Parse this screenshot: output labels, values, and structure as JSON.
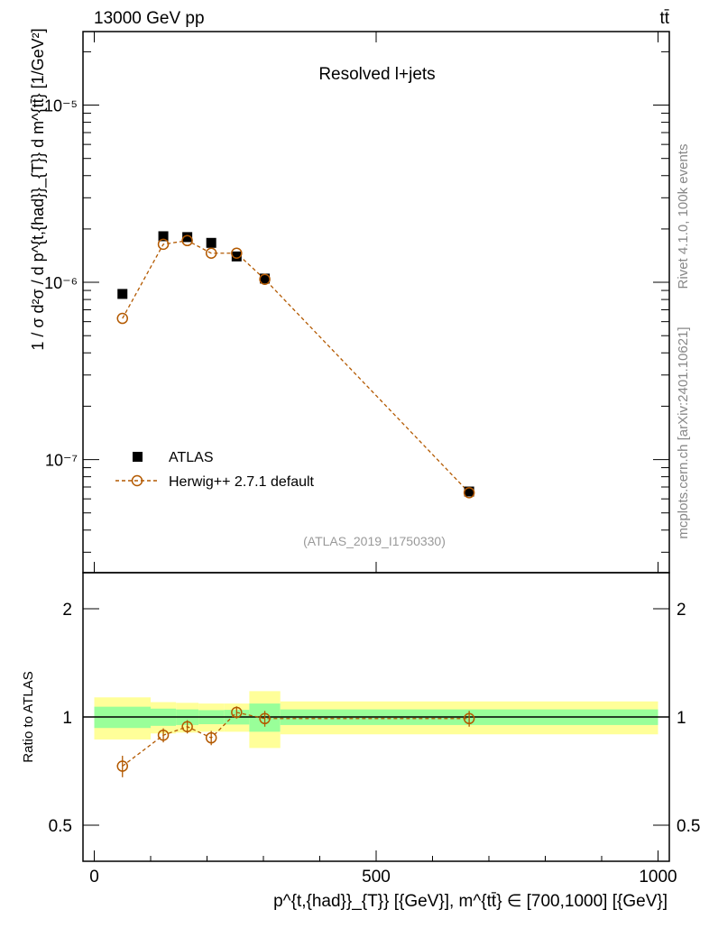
{
  "header": {
    "left": "13000 GeV pp",
    "right": "tt̄"
  },
  "side_labels": {
    "top": "Rivet 4.1.0,  100k events",
    "bottom": "mcplots.cern.ch [arXiv:2401.10621]"
  },
  "colors": {
    "data": "#000000",
    "mc": "#b35900",
    "band_inner": "#99ff99",
    "band_outer": "#ffff99"
  },
  "chart_data": {
    "type": "scatter",
    "title": "Resolved l+jets",
    "watermark": "(ATLAS_2019_I1750330)",
    "xlabel": "p^{t,{had}}_{T}} [{GeV}], m^{tt̄} ∈ [700,1000] [{GeV}]",
    "ylabel": "1 / σ d²σ / d p^{t,{had}}_{T}} d m^{tt̄} [1/GeV²]",
    "ratio_ylabel": "Ratio to ATLAS",
    "xlim": [
      -20,
      1020
    ],
    "ylim": [
      2.3e-08,
      2.6e-05
    ],
    "ratio_ylim": [
      0.397,
      2.52
    ],
    "x_ticks": [
      0,
      500,
      1000
    ],
    "y_ticks": [
      {
        "v": 1e-05,
        "label": "10⁻⁵"
      },
      {
        "v": 1e-06,
        "label": "10⁻⁶"
      },
      {
        "v": 1e-07,
        "label": "10⁻⁷"
      }
    ],
    "ratio_ticks": [
      0.5,
      1,
      2
    ],
    "legend": {
      "position": "bottom-left",
      "entries": [
        "ATLAS",
        "Herwig++ 2.7.1 default"
      ]
    },
    "bin_edges": [
      0,
      100,
      145,
      185,
      230,
      275,
      330,
      1000
    ],
    "x": [
      50,
      122.5,
      165,
      207.5,
      252.5,
      302.5,
      665
    ],
    "series": [
      {
        "name": "ATLAS",
        "values": [
          8.6e-07,
          1.82e-06,
          1.8e-06,
          1.67e-06,
          1.4e-06,
          1.05e-06,
          6.6e-08
        ]
      },
      {
        "name": "Herwig++ 2.7.1 default",
        "values": [
          6.26e-07,
          1.64e-06,
          1.72e-06,
          1.46e-06,
          1.46e-06,
          1.04e-06,
          6.5e-08
        ]
      }
    ],
    "ratio": [
      0.73,
      0.89,
      0.94,
      0.875,
      1.03,
      0.99,
      0.99
    ],
    "ratio_err": [
      0.05,
      0.04,
      0.04,
      0.04,
      0.04,
      0.05,
      0.05
    ],
    "band_inner": [
      0.068,
      0.055,
      0.05,
      0.045,
      0.047,
      0.09,
      0.05
    ],
    "band_outer": [
      0.134,
      0.1,
      0.095,
      0.09,
      0.09,
      0.18,
      0.105
    ]
  }
}
